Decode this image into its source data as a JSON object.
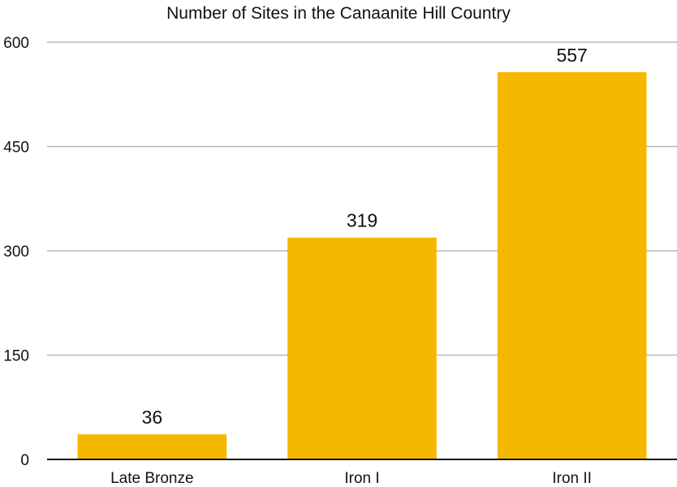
{
  "chart_data": {
    "type": "bar",
    "title": "Number of Sites in the Canaanite Hill Country",
    "xlabel": "",
    "ylabel": "",
    "categories": [
      "Late Bronze",
      "Iron I",
      "Iron II"
    ],
    "values": [
      36,
      319,
      557
    ],
    "data_labels": [
      "36",
      "319",
      "557"
    ],
    "ylim": [
      0,
      600
    ],
    "yticks": [
      0,
      150,
      300,
      450,
      600
    ],
    "ytick_labels": [
      "0",
      "150",
      "300",
      "450",
      "600"
    ],
    "grid": true,
    "legend": "none",
    "bar_color": "#f5b800"
  }
}
